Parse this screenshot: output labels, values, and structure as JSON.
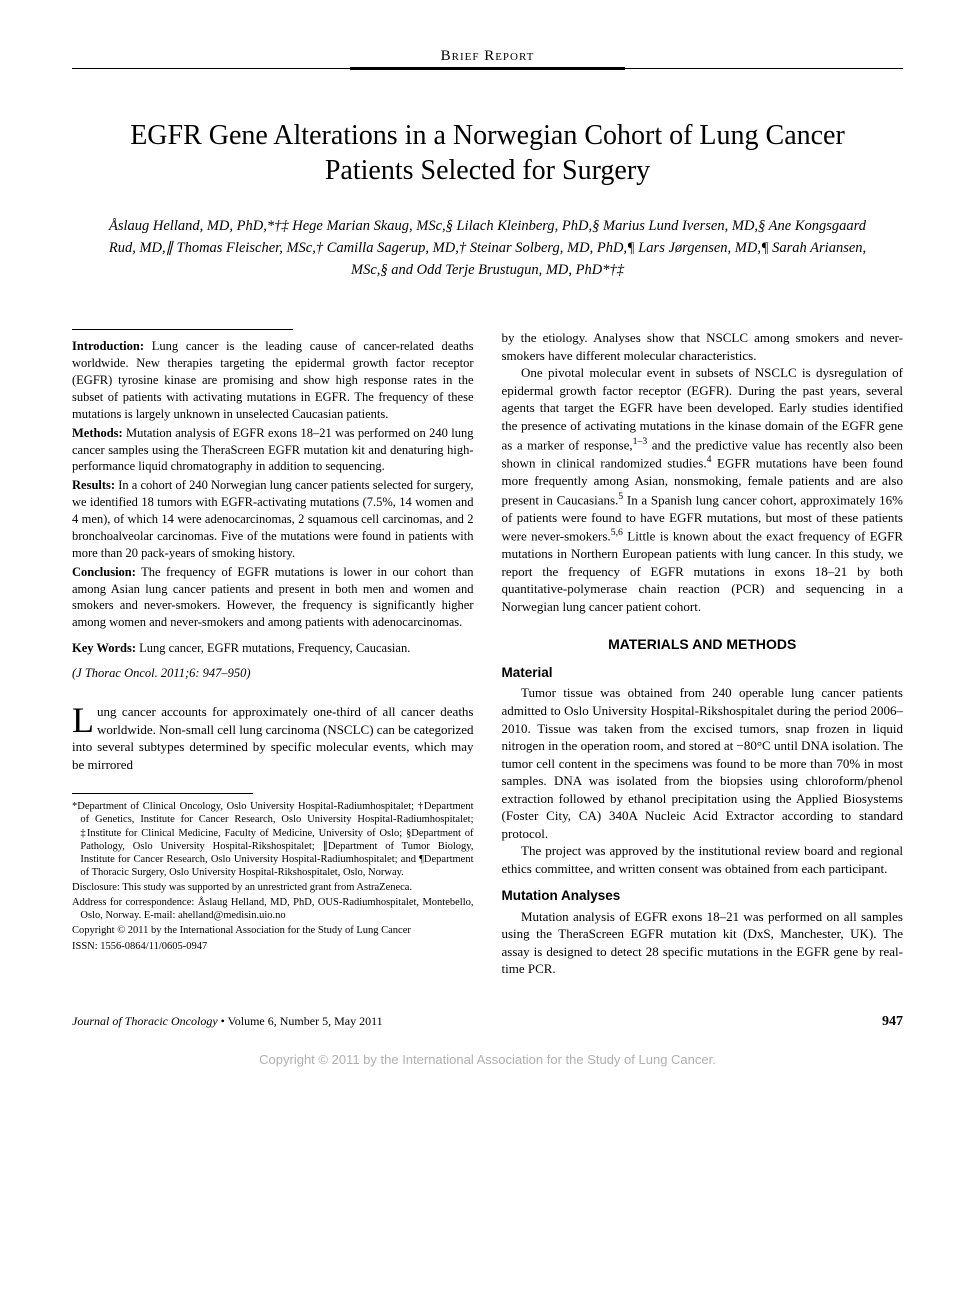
{
  "section_header": "Brief Report",
  "title": "EGFR Gene Alterations in a Norwegian Cohort of Lung Cancer Patients Selected for Surgery",
  "authors": "Åslaug Helland, MD, PhD,*†‡ Hege Marian Skaug, MSc,§ Lilach Kleinberg, PhD,§ Marius Lund Iversen, MD,§ Ane Kongsgaard Rud, MD,∥ Thomas Fleischer, MSc,† Camilla Sagerup, MD,† Steinar Solberg, MD, PhD,¶ Lars Jørgensen, MD,¶ Sarah Ariansen, MSc,§ and Odd Terje Brustugun, MD, PhD*†‡",
  "abstract": {
    "introduction": {
      "label": "Introduction:",
      "text": " Lung cancer is the leading cause of cancer-related deaths worldwide. New therapies targeting the epidermal growth factor receptor (EGFR) tyrosine kinase are promising and show high response rates in the subset of patients with activating mutations in EGFR. The frequency of these mutations is largely unknown in unselected Caucasian patients."
    },
    "methods": {
      "label": "Methods:",
      "text": " Mutation analysis of EGFR exons 18–21 was performed on 240 lung cancer samples using the TheraScreen EGFR mutation kit and denaturing high-performance liquid chromatography in addition to sequencing."
    },
    "results": {
      "label": "Results:",
      "text": " In a cohort of 240 Norwegian lung cancer patients selected for surgery, we identified 18 tumors with EGFR-activating mutations (7.5%, 14 women and 4 men), of which 14 were adenocarcinomas, 2 squamous cell carcinomas, and 2 bronchoalveolar carcinomas. Five of the mutations were found in patients with more than 20 pack-years of smoking history."
    },
    "conclusion": {
      "label": "Conclusion:",
      "text": " The frequency of EGFR mutations is lower in our cohort than among Asian lung cancer patients and present in both men and women and smokers and never-smokers. However, the frequency is significantly higher among women and never-smokers and among patients with adenocarcinomas."
    }
  },
  "keywords": {
    "label": "Key Words:",
    "text": " Lung cancer, EGFR mutations, Frequency, Caucasian."
  },
  "citation": "(J Thorac Oncol. 2011;6: 947–950)",
  "intro_dropcap": "L",
  "intro_para": "ung cancer accounts for approximately one-third of all cancer deaths worldwide. Non-small cell lung carcinoma (NSCLC) can be categorized into several subtypes determined by specific molecular events, which may be mirrored",
  "footnotes": {
    "affiliations": "*Department of Clinical Oncology, Oslo University Hospital-Radiumhospitalet; †Department of Genetics, Institute for Cancer Research, Oslo University Hospital-Radiumhospitalet; ‡Institute for Clinical Medicine, Faculty of Medicine, University of Oslo; §Department of Pathology, Oslo University Hospital-Rikshospitalet; ∥Department of Tumor Biology, Institute for Cancer Research, Oslo University Hospital-Radiumhospitalet; and ¶Department of Thoracic Surgery, Oslo University Hospital-Rikshospitalet, Oslo, Norway.",
    "disclosure": "Disclosure: This study was supported by an unrestricted grant from AstraZeneca.",
    "correspondence": "Address for correspondence: Åslaug Helland, MD, PhD, OUS-Radiumhospitalet, Montebello, Oslo, Norway. E-mail: ahelland@medisin.uio.no",
    "copyright": "Copyright © 2011 by the International Association for the Study of Lung Cancer",
    "issn": "ISSN: 1556-0864/11/0605-0947"
  },
  "col2": {
    "p1": "by the etiology. Analyses show that NSCLC among smokers and never-smokers have different molecular characteristics.",
    "p2a": "One pivotal molecular event in subsets of NSCLC is dysregulation of epidermal growth factor receptor (EGFR). During the past years, several agents that target the EGFR have been developed. Early studies identified the presence of activating mutations in the kinase domain of the EGFR gene as a marker of response,",
    "p2b": " and the predictive value has recently also been shown in clinical randomized studies.",
    "p2c": " EGFR mutations have been found more frequently among Asian, nonsmoking, female patients and are also present in Caucasians.",
    "p2d": " In a Spanish lung cancer cohort, approximately 16% of patients were found to have EGFR mutations, but most of these patients were never-smokers.",
    "p2e": " Little is known about the exact frequency of EGFR mutations in Northern European patients with lung cancer. In this study, we report the frequency of EGFR mutations in exons 18–21 by both quantitative-polymerase chain reaction (PCR) and sequencing in a Norwegian lung cancer patient cohort.",
    "sup1": "1–3",
    "sup2": "4",
    "sup3": "5",
    "sup4": "5,6"
  },
  "materials_heading": "MATERIALS AND METHODS",
  "material_heading": "Material",
  "material_p1": "Tumor tissue was obtained from 240 operable lung cancer patients admitted to Oslo University Hospital-Rikshospitalet during the period 2006–2010. Tissue was taken from the excised tumors, snap frozen in liquid nitrogen in the operation room, and stored at −80°C until DNA isolation. The tumor cell content in the specimens was found to be more than 70% in most samples. DNA was isolated from the biopsies using chloroform/phenol extraction followed by ethanol precipitation using the Applied Biosystems (Foster City, CA) 340A Nucleic Acid Extractor according to standard protocol.",
  "material_p2": "The project was approved by the institutional review board and regional ethics committee, and written consent was obtained from each participant.",
  "mutation_heading": "Mutation Analyses",
  "mutation_p1": "Mutation analysis of EGFR exons 18–21 was performed on all samples using the TheraScreen EGFR mutation kit (DxS, Manchester, UK). The assay is designed to detect 28 specific mutations in the EGFR gene by real-time PCR.",
  "footer": {
    "journal": "Journal of Thoracic Oncology",
    "issue": " • Volume 6, Number 5, May 2011",
    "page": "947"
  },
  "bottom_copyright": "Copyright © 2011 by the International Association for the Study of Lung Cancer."
}
